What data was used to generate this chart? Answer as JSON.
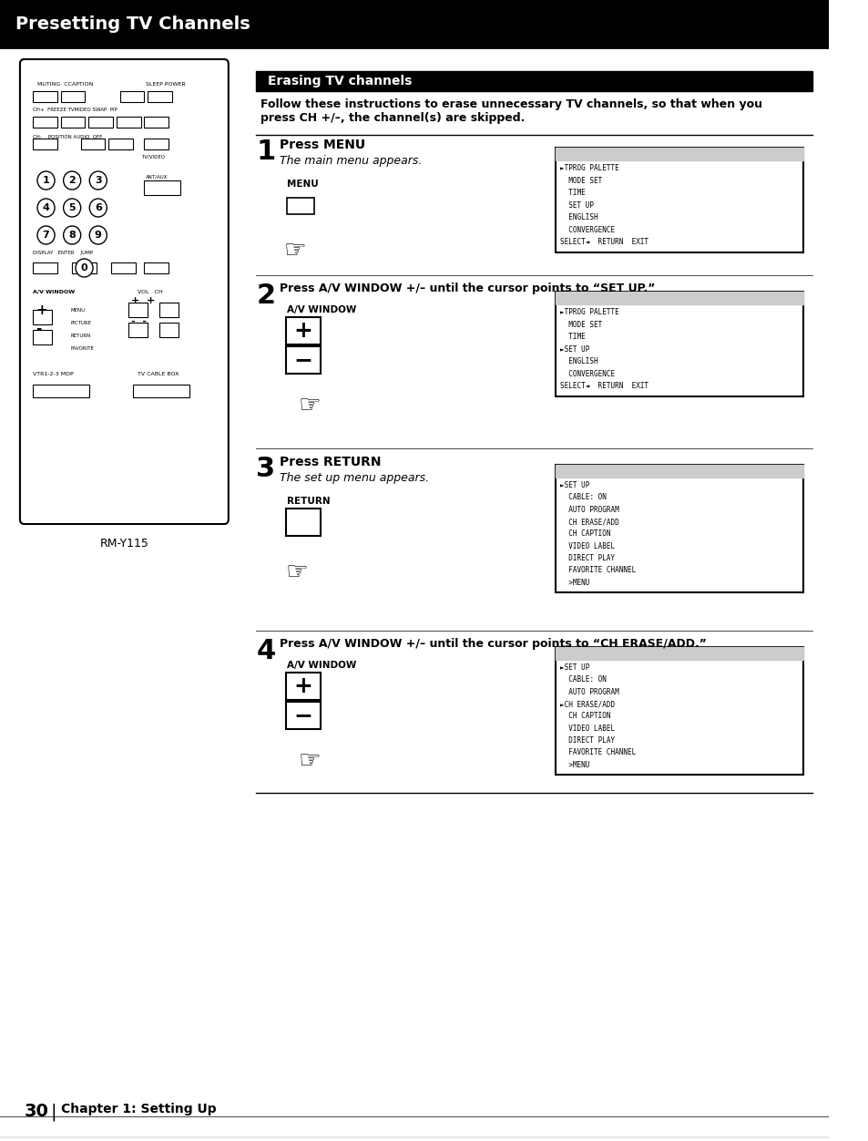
{
  "page_title": "Presetting TV Channels",
  "section_title": "Erasing TV channels",
  "intro_text": "Follow these instructions to erase unnecessary TV channels, so that when you\npress CH +/–, the channel(s) are skipped.",
  "bg_color": "#ffffff",
  "header_bar_color": "#000000",
  "section_bar_color": "#000000",
  "step1_title": "Press MENU",
  "step1_sub": "The main menu appears.",
  "step2_title": "Press A/V WINDOW +/– until the cursor points to “SET UP.”",
  "step2_label": "A/V WINDOW",
  "step3_title": "Press RETURN",
  "step3_sub": "The set up menu appears.",
  "step3_label": "RETURN",
  "step4_title": "Press A/V WINDOW +/– until the cursor points to “CH ERASE/ADD.”",
  "step4_label": "A/V WINDOW",
  "menu1_lines": [
    "►TPROG PALETTE",
    "  MODE SET",
    "  TIME",
    "  SET UP",
    "  ENGLISH",
    "  CONVERGENCE",
    "SELECT◄  RETURN  EXIT"
  ],
  "menu2_lines": [
    "►TPROG PALETTE",
    "  MODE SET",
    "  TIME",
    "►SET UP",
    "  ENGLISH",
    "  CONVERGENCE",
    "SELECT◄  RETURN  EXIT"
  ],
  "menu3_lines": [
    "►SET UP",
    "  CABLE: ON",
    "  AUTO PROGRAM",
    "  CH ERASE/ADD",
    "  CH CAPTION",
    "  VIDEO LABEL",
    "  DIRECT PLAY",
    "  FAVORITE CHANNEL",
    "  >MENU"
  ],
  "menu4_lines": [
    "►SET UP",
    "  CABLE: ON",
    "  AUTO PROGRAM",
    "►CH ERASE/ADD",
    "  CH CAPTION",
    "  VIDEO LABEL",
    "  DIRECT PLAY",
    "  FAVORITE CHANNEL",
    "  >MENU"
  ],
  "remote_label": "RM-Y115",
  "page_number": "30",
  "chapter_text": "Chapter 1: Setting Up",
  "divider_color": "#000000",
  "step_num_color": "#000000",
  "light_gray": "#cccccc"
}
